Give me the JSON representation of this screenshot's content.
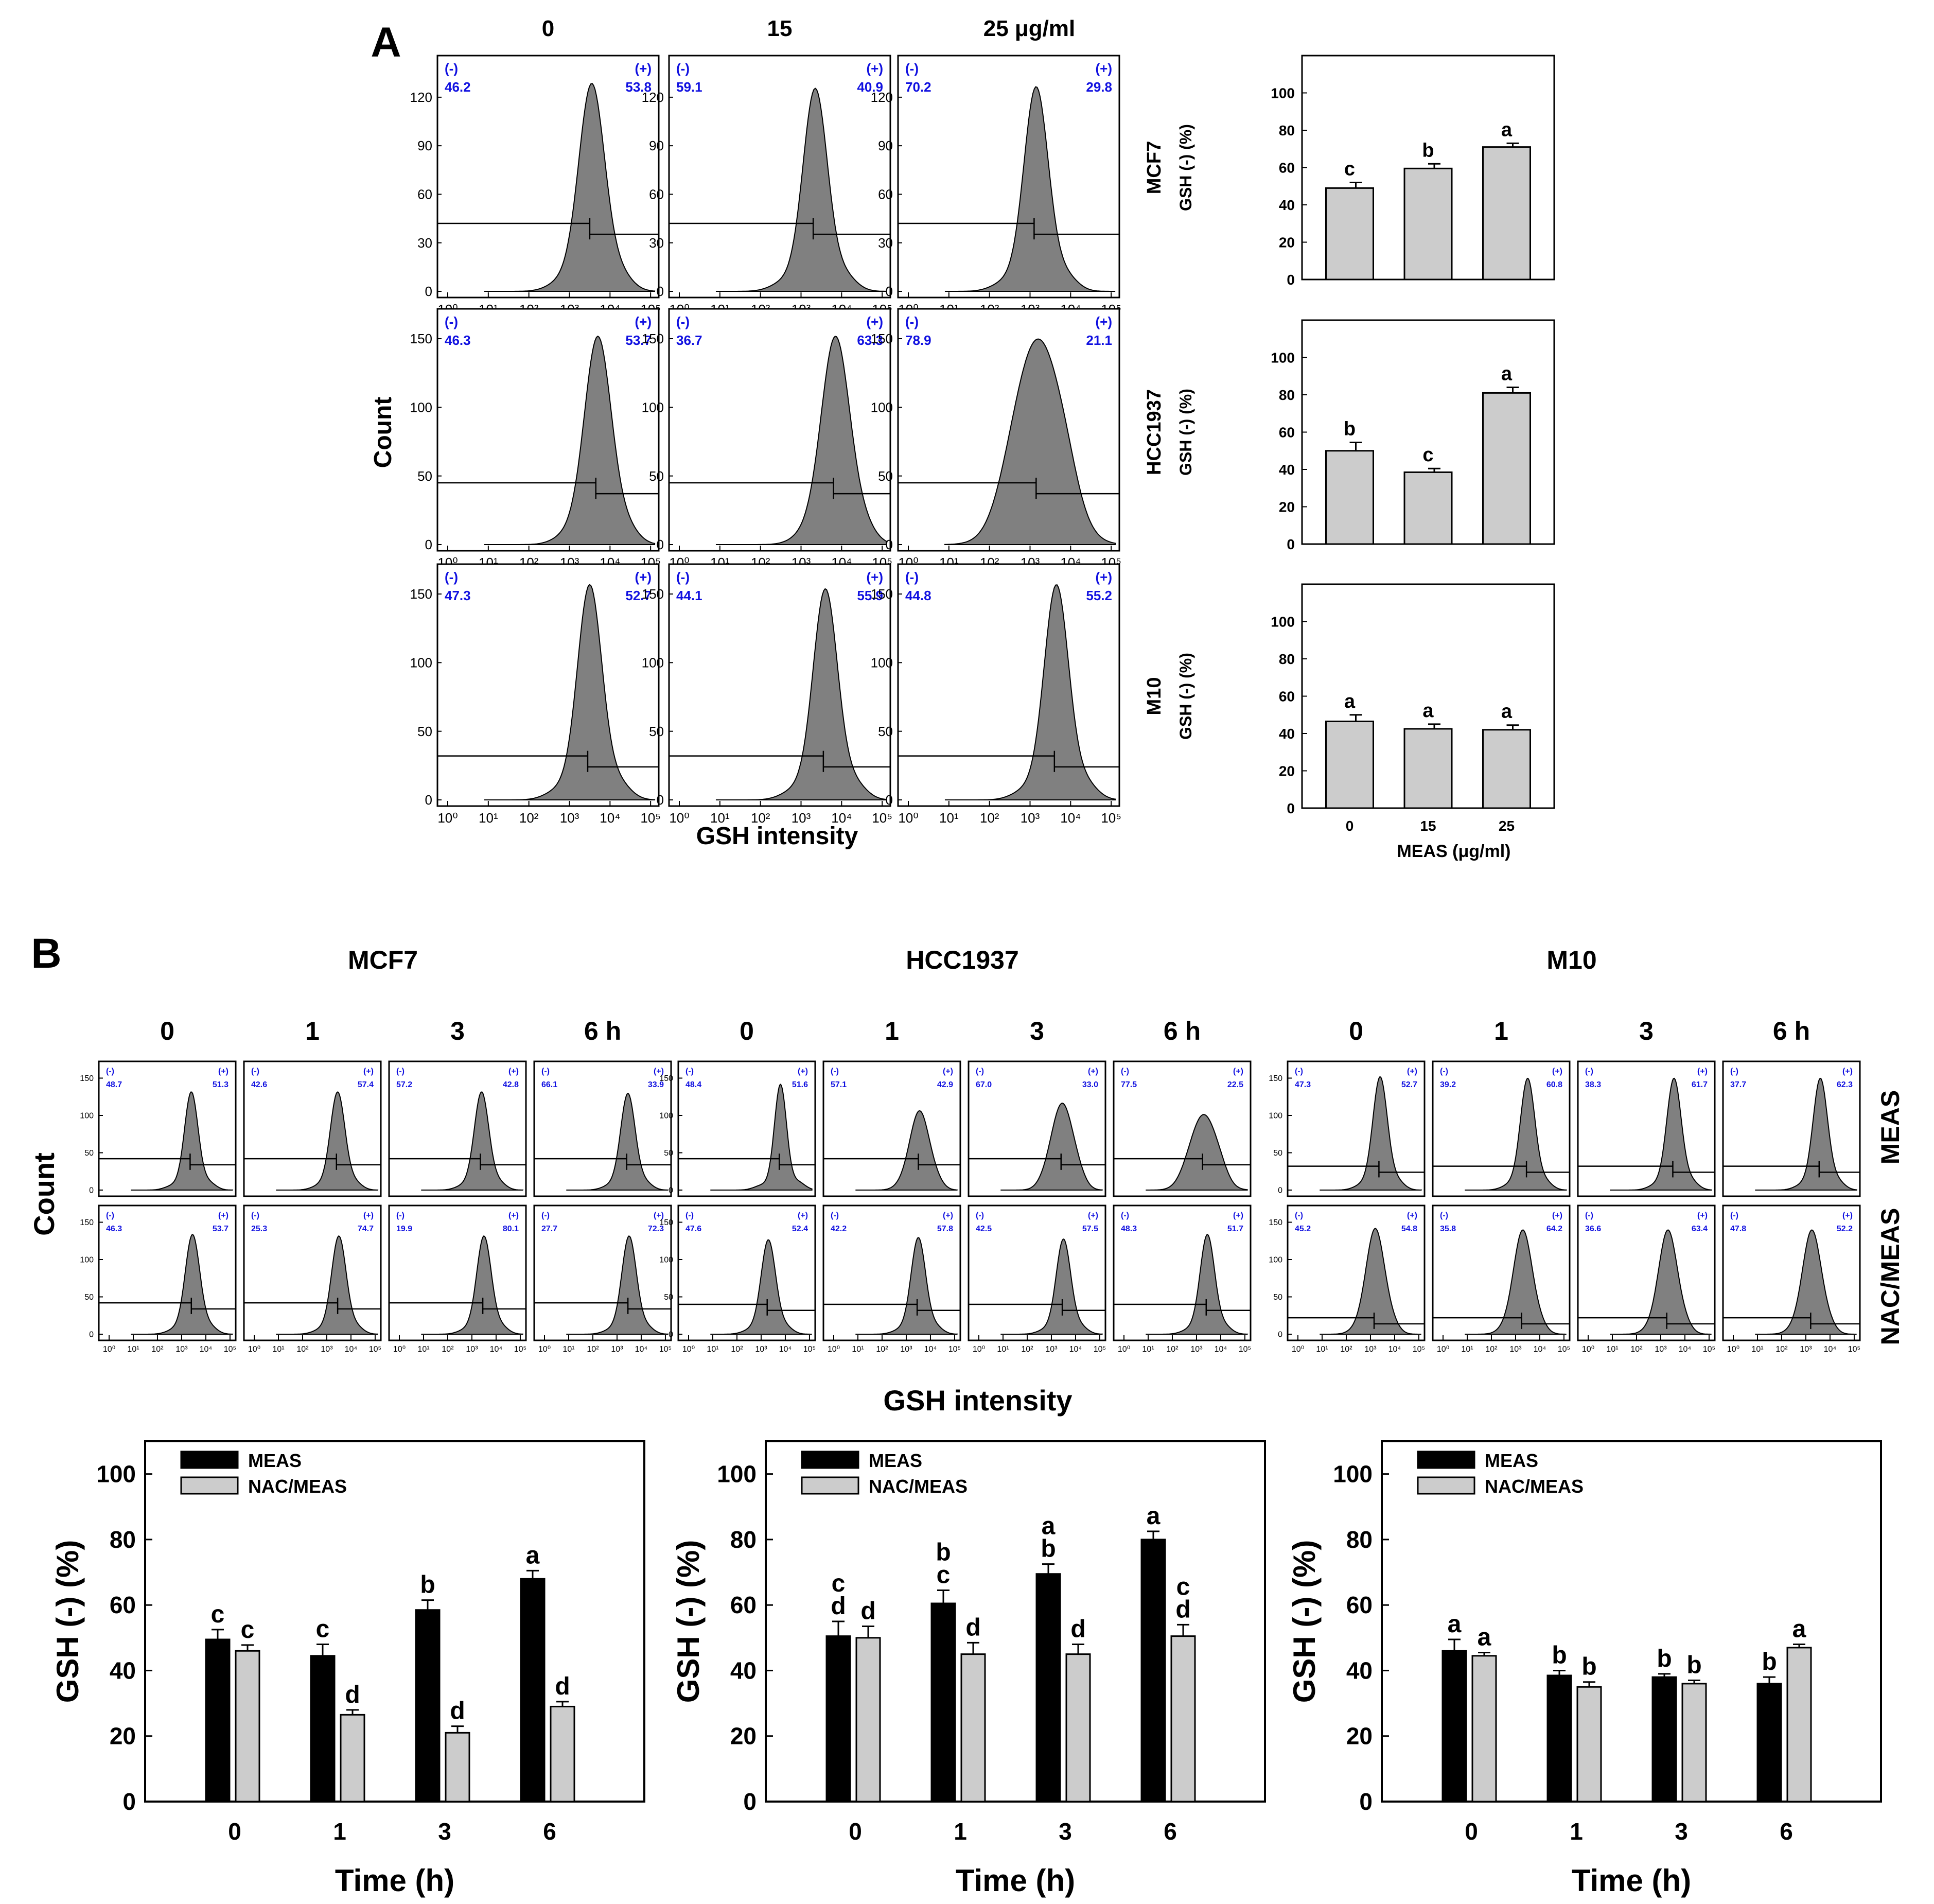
{
  "panel_a": {
    "label": "A",
    "dose_headers": [
      "0",
      "15",
      "25 μg/ml"
    ],
    "histogram_axis": {
      "ylabel": "Count",
      "xlabel": "GSH intensity",
      "xticks": [
        "10⁰",
        "10¹",
        "10²",
        "10³",
        "10⁴",
        "10⁵"
      ]
    },
    "histogram_rows": [
      {
        "cell_line": "MCF7",
        "yticks": [
          "0",
          "30",
          "60",
          "90",
          "120"
        ],
        "ymax": 140,
        "marker_level": 42,
        "cells": [
          {
            "neg": "46.2",
            "pos": "53.8",
            "peak_log": 3.55,
            "width": 0.32,
            "height": 127
          },
          {
            "neg": "59.1",
            "pos": "40.9",
            "peak_log": 3.35,
            "width": 0.3,
            "height": 124
          },
          {
            "neg": "70.2",
            "pos": "29.8",
            "peak_log": 3.15,
            "width": 0.3,
            "height": 125
          }
        ]
      },
      {
        "cell_line": "HCC1937",
        "yticks": [
          "0",
          "50",
          "100",
          "150"
        ],
        "ymax": 165,
        "marker_level": 45,
        "cells": [
          {
            "neg": "46.3",
            "pos": "53.7",
            "peak_log": 3.7,
            "width": 0.33,
            "height": 150
          },
          {
            "neg": "36.7",
            "pos": "63.3",
            "peak_log": 3.85,
            "width": 0.35,
            "height": 150
          },
          {
            "neg": "78.9",
            "pos": "21.1",
            "peak_log": 3.2,
            "width": 0.6,
            "height": 148
          }
        ]
      },
      {
        "cell_line": "M10",
        "yticks": [
          "0",
          "50",
          "100",
          "150"
        ],
        "ymax": 165,
        "marker_level": 32,
        "cells": [
          {
            "neg": "47.3",
            "pos": "52.7",
            "peak_log": 3.5,
            "width": 0.3,
            "height": 155
          },
          {
            "neg": "44.1",
            "pos": "55.9",
            "peak_log": 3.6,
            "width": 0.3,
            "height": 152
          },
          {
            "neg": "44.8",
            "pos": "55.2",
            "peak_log": 3.65,
            "width": 0.3,
            "height": 155
          }
        ]
      }
    ],
    "bar_charts": [
      {
        "cell_line": "MCF7",
        "ylabel": "GSH (-) (%)",
        "categories": [
          "0",
          "15",
          "25"
        ],
        "values": [
          49,
          59.5,
          71
        ],
        "errors": [
          3,
          2.5,
          2
        ],
        "letters": [
          "c",
          "b",
          "a"
        ],
        "ylim": [
          0,
          120
        ],
        "yticks": [
          "0",
          "20",
          "40",
          "60",
          "80",
          "100"
        ]
      },
      {
        "cell_line": "HCC1937",
        "ylabel": "GSH (-) (%)",
        "categories": [
          "0",
          "15",
          "25"
        ],
        "values": [
          50,
          38.5,
          81
        ],
        "errors": [
          4.5,
          2,
          3
        ],
        "letters": [
          "b",
          "c",
          "a"
        ],
        "ylim": [
          0,
          120
        ],
        "yticks": [
          "0",
          "20",
          "40",
          "60",
          "80",
          "100"
        ]
      },
      {
        "cell_line": "M10",
        "ylabel": "GSH (-) (%)",
        "categories": [
          "0",
          "15",
          "25"
        ],
        "values": [
          46.5,
          42.5,
          42
        ],
        "errors": [
          3.5,
          2.5,
          2.5
        ],
        "letters": [
          "a",
          "a",
          "a"
        ],
        "ylim": [
          0,
          120
        ],
        "yticks": [
          "0",
          "20",
          "40",
          "60",
          "80",
          "100"
        ],
        "xlabel": "MEAS (μg/ml)"
      }
    ]
  },
  "panel_b": {
    "label": "B",
    "cell_lines": [
      "MCF7",
      "HCC1937",
      "M10"
    ],
    "time_headers": [
      "0",
      "1",
      "3",
      "6 h"
    ],
    "row_labels": [
      "MEAS",
      "NAC/MEAS"
    ],
    "count_label": "Count",
    "intensity_label": "GSH intensity",
    "histograms": [
      {
        "cell_line": "MCF7",
        "yticks": [
          "0",
          "50",
          "100",
          "150"
        ],
        "ymax": 160,
        "rows": [
          [
            {
              "neg": "48.7",
              "pos": "51.3",
              "peak_log": 3.4,
              "width": 0.28,
              "height": 130,
              "marker": 42
            },
            {
              "neg": "42.6",
              "pos": "57.4",
              "peak_log": 3.45,
              "width": 0.3,
              "height": 130,
              "marker": 42
            },
            {
              "neg": "57.2",
              "pos": "42.8",
              "peak_log": 3.4,
              "width": 0.3,
              "height": 130,
              "marker": 42
            },
            {
              "neg": "66.1",
              "pos": "33.9",
              "peak_log": 3.45,
              "width": 0.3,
              "height": 128,
              "marker": 42
            }
          ],
          [
            {
              "neg": "46.3",
              "pos": "53.7",
              "peak_log": 3.45,
              "width": 0.3,
              "height": 132,
              "marker": 42
            },
            {
              "neg": "25.3",
              "pos": "74.7",
              "peak_log": 3.5,
              "width": 0.3,
              "height": 130,
              "marker": 42
            },
            {
              "neg": "19.9",
              "pos": "80.1",
              "peak_log": 3.5,
              "width": 0.3,
              "height": 130,
              "marker": 42
            },
            {
              "neg": "27.7",
              "pos": "72.3",
              "peak_log": 3.5,
              "width": 0.3,
              "height": 130,
              "marker": 42
            }
          ]
        ]
      },
      {
        "cell_line": "HCC1937",
        "yticks": [
          "0",
          "50",
          "100",
          "150"
        ],
        "ymax": 160,
        "rows": [
          [
            {
              "neg": "48.4",
              "pos": "51.6",
              "peak_log": 3.8,
              "width": 0.25,
              "height": 140,
              "marker": 42
            },
            {
              "neg": "57.1",
              "pos": "42.9",
              "peak_log": 3.55,
              "width": 0.4,
              "height": 105,
              "marker": 42
            },
            {
              "neg": "67.0",
              "pos": "33.0",
              "peak_log": 3.45,
              "width": 0.45,
              "height": 115,
              "marker": 42
            },
            {
              "neg": "77.5",
              "pos": "22.5",
              "peak_log": 3.3,
              "width": 0.55,
              "height": 100,
              "marker": 42
            }
          ],
          [
            {
              "neg": "47.6",
              "pos": "52.4",
              "peak_log": 3.3,
              "width": 0.3,
              "height": 125,
              "marker": 40
            },
            {
              "neg": "42.2",
              "pos": "57.8",
              "peak_log": 3.5,
              "width": 0.3,
              "height": 128,
              "marker": 40
            },
            {
              "neg": "42.5",
              "pos": "57.5",
              "peak_log": 3.5,
              "width": 0.3,
              "height": 126,
              "marker": 40
            },
            {
              "neg": "48.3",
              "pos": "51.7",
              "peak_log": 3.45,
              "width": 0.3,
              "height": 132,
              "marker": 40
            }
          ]
        ]
      },
      {
        "cell_line": "M10",
        "yticks": [
          "0",
          "50",
          "100",
          "150"
        ],
        "ymax": 160,
        "rows": [
          [
            {
              "neg": "47.3",
              "pos": "52.7",
              "peak_log": 3.4,
              "width": 0.3,
              "height": 150,
              "marker": 32
            },
            {
              "neg": "39.2",
              "pos": "60.8",
              "peak_log": 3.5,
              "width": 0.3,
              "height": 148,
              "marker": 32
            },
            {
              "neg": "38.3",
              "pos": "61.7",
              "peak_log": 3.55,
              "width": 0.3,
              "height": 148,
              "marker": 32
            },
            {
              "neg": "37.7",
              "pos": "62.3",
              "peak_log": 3.6,
              "width": 0.3,
              "height": 148,
              "marker": 32
            }
          ],
          [
            {
              "neg": "45.2",
              "pos": "54.8",
              "peak_log": 3.2,
              "width": 0.38,
              "height": 140,
              "marker": 22
            },
            {
              "neg": "35.8",
              "pos": "64.2",
              "peak_log": 3.3,
              "width": 0.38,
              "height": 138,
              "marker": 22
            },
            {
              "neg": "36.6",
              "pos": "63.4",
              "peak_log": 3.3,
              "width": 0.38,
              "height": 138,
              "marker": 22
            },
            {
              "neg": "47.8",
              "pos": "52.2",
              "peak_log": 3.25,
              "width": 0.38,
              "height": 138,
              "marker": 22
            }
          ]
        ]
      }
    ],
    "bar_charts": [
      {
        "cell_line": "MCF7",
        "categories": [
          "0",
          "1",
          "3",
          "6"
        ],
        "series": [
          {
            "name": "MEAS",
            "color": "#000000",
            "values": [
              49.5,
              44.5,
              58.5,
              68
            ],
            "errors": [
              3,
              3.5,
              3,
              2.5
            ],
            "letters": [
              "c",
              "c",
              "b",
              "a"
            ]
          },
          {
            "name": "NAC/MEAS",
            "color": "#cccccc",
            "values": [
              46,
              26.5,
              21,
              29
            ],
            "errors": [
              1.8,
              1.5,
              2,
              1.5
            ],
            "letters": [
              "c",
              "d",
              "d",
              "d"
            ]
          }
        ],
        "xlabel": "Time (h)",
        "ylabel": "GSH (-) (%)",
        "ylim": [
          0,
          110
        ],
        "yticks": [
          "0",
          "20",
          "40",
          "60",
          "80",
          "100"
        ]
      },
      {
        "cell_line": "HCC1937",
        "categories": [
          "0",
          "1",
          "3",
          "6"
        ],
        "series": [
          {
            "name": "MEAS",
            "color": "#000000",
            "values": [
              50.5,
              60.5,
              69.5,
              80
            ],
            "errors": [
              4.5,
              4,
              3,
              2.5
            ],
            "letters": [
              "cd",
              "bc",
              "ab",
              "a"
            ]
          },
          {
            "name": "NAC/MEAS",
            "color": "#cccccc",
            "values": [
              50,
              45,
              45,
              50.5
            ],
            "errors": [
              3.5,
              3.5,
              3,
              3.5
            ],
            "letters": [
              "d",
              "d",
              "d",
              "cd"
            ]
          }
        ],
        "xlabel": "Time (h)",
        "ylabel": "GSH (-) (%)",
        "ylim": [
          0,
          110
        ],
        "yticks": [
          "0",
          "20",
          "40",
          "60",
          "80",
          "100"
        ]
      },
      {
        "cell_line": "M10",
        "categories": [
          "0",
          "1",
          "3",
          "6"
        ],
        "series": [
          {
            "name": "MEAS",
            "color": "#000000",
            "values": [
              46,
              38.5,
              38,
              36
            ],
            "errors": [
              3.5,
              1.5,
              1,
              2
            ],
            "letters": [
              "a",
              "b",
              "b",
              "b"
            ]
          },
          {
            "name": "NAC/MEAS",
            "color": "#cccccc",
            "values": [
              44.5,
              35,
              36,
              47
            ],
            "errors": [
              1,
              1.5,
              1,
              1
            ],
            "letters": [
              "a",
              "b",
              "b",
              "a"
            ]
          }
        ],
        "xlabel": "Time (h)",
        "ylabel": "GSH (-) (%)",
        "ylim": [
          0,
          110
        ],
        "yticks": [
          "0",
          "20",
          "40",
          "60",
          "80",
          "100"
        ]
      }
    ]
  },
  "chart_data": [
    {
      "type": "bar",
      "title": "MCF7",
      "categories": [
        "0",
        "15",
        "25"
      ],
      "values": [
        49,
        59.5,
        71
      ],
      "xlabel": "MEAS (μg/ml)",
      "ylabel": "GSH (-) (%)",
      "ylim": [
        0,
        120
      ]
    },
    {
      "type": "bar",
      "title": "HCC1937",
      "categories": [
        "0",
        "15",
        "25"
      ],
      "values": [
        50,
        38.5,
        81
      ],
      "xlabel": "MEAS (μg/ml)",
      "ylabel": "GSH (-) (%)",
      "ylim": [
        0,
        120
      ]
    },
    {
      "type": "bar",
      "title": "M10",
      "categories": [
        "0",
        "15",
        "25"
      ],
      "values": [
        46.5,
        42.5,
        42
      ],
      "xlabel": "MEAS (μg/ml)",
      "ylabel": "GSH (-) (%)",
      "ylim": [
        0,
        120
      ]
    },
    {
      "type": "bar",
      "title": "MCF7",
      "categories": [
        "0",
        "1",
        "3",
        "6"
      ],
      "series": [
        {
          "name": "MEAS",
          "values": [
            49.5,
            44.5,
            58.5,
            68
          ]
        },
        {
          "name": "NAC/MEAS",
          "values": [
            46,
            26.5,
            21,
            29
          ]
        }
      ],
      "xlabel": "Time (h)",
      "ylabel": "GSH (-) (%)",
      "ylim": [
        0,
        110
      ]
    },
    {
      "type": "bar",
      "title": "HCC1937",
      "categories": [
        "0",
        "1",
        "3",
        "6"
      ],
      "series": [
        {
          "name": "MEAS",
          "values": [
            50.5,
            60.5,
            69.5,
            80
          ]
        },
        {
          "name": "NAC/MEAS",
          "values": [
            50,
            45,
            45,
            50.5
          ]
        }
      ],
      "xlabel": "Time (h)",
      "ylabel": "GSH (-) (%)",
      "ylim": [
        0,
        110
      ]
    },
    {
      "type": "bar",
      "title": "M10",
      "categories": [
        "0",
        "1",
        "3",
        "6"
      ],
      "series": [
        {
          "name": "MEAS",
          "values": [
            46,
            38.5,
            38,
            36
          ]
        },
        {
          "name": "NAC/MEAS",
          "values": [
            44.5,
            35,
            36,
            47
          ]
        }
      ],
      "xlabel": "Time (h)",
      "ylabel": "GSH (-) (%)",
      "ylim": [
        0,
        110
      ]
    }
  ],
  "colors": {
    "histogram_fill": "#808080",
    "gate_text": "#1010e0",
    "bar_light": "#cccccc",
    "bar_dark": "#000000"
  }
}
